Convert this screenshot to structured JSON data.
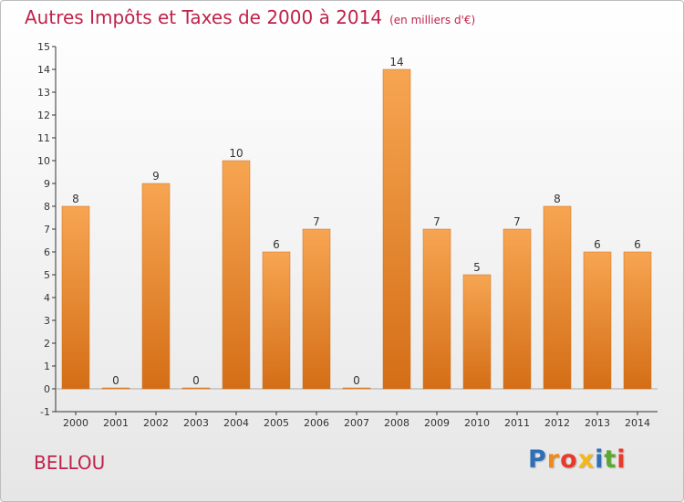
{
  "title": "Autres Impôts et Taxes de 2000 à 2014",
  "subtitle": "(en milliers d'€)",
  "commune": "BELLOU",
  "logo": {
    "letters": [
      "P",
      "r",
      "o",
      "x",
      "i",
      "t",
      "i"
    ],
    "colors": [
      "#2f6fb6",
      "#f08a1c",
      "#e8392a",
      "#f6b819",
      "#2f6fb6",
      "#5aa832",
      "#e8392a"
    ]
  },
  "colors": {
    "bar_light": "#f7a552",
    "bar_dark": "#d46e16",
    "axis": "#333333",
    "grid": "#aaaaaa",
    "text": "#333333"
  },
  "chart_data": {
    "type": "bar",
    "title": "Autres Impôts et Taxes de 2000 à 2014",
    "subtitle": "(en milliers d'€)",
    "categories": [
      "2000",
      "2001",
      "2002",
      "2003",
      "2004",
      "2005",
      "2006",
      "2007",
      "2008",
      "2009",
      "2010",
      "2011",
      "2012",
      "2013",
      "2014"
    ],
    "values": [
      8,
      0,
      9,
      0,
      10,
      6,
      7,
      0,
      14,
      7,
      5,
      7,
      8,
      6,
      6
    ],
    "value_labels": [
      "8",
      "0",
      "9",
      "0",
      "10",
      "6",
      "7",
      "0",
      "14",
      "7",
      "5",
      "7",
      "8",
      "6",
      "6"
    ],
    "y_ticks": [
      "-1",
      "0",
      "1",
      "2",
      "3",
      "4",
      "5",
      "6",
      "7",
      "8",
      "9",
      "10",
      "11",
      "12",
      "13",
      "14",
      "15"
    ],
    "ylim": [
      -1,
      15
    ],
    "xlabel": "",
    "ylabel": "",
    "grid": false,
    "legend": "none"
  }
}
